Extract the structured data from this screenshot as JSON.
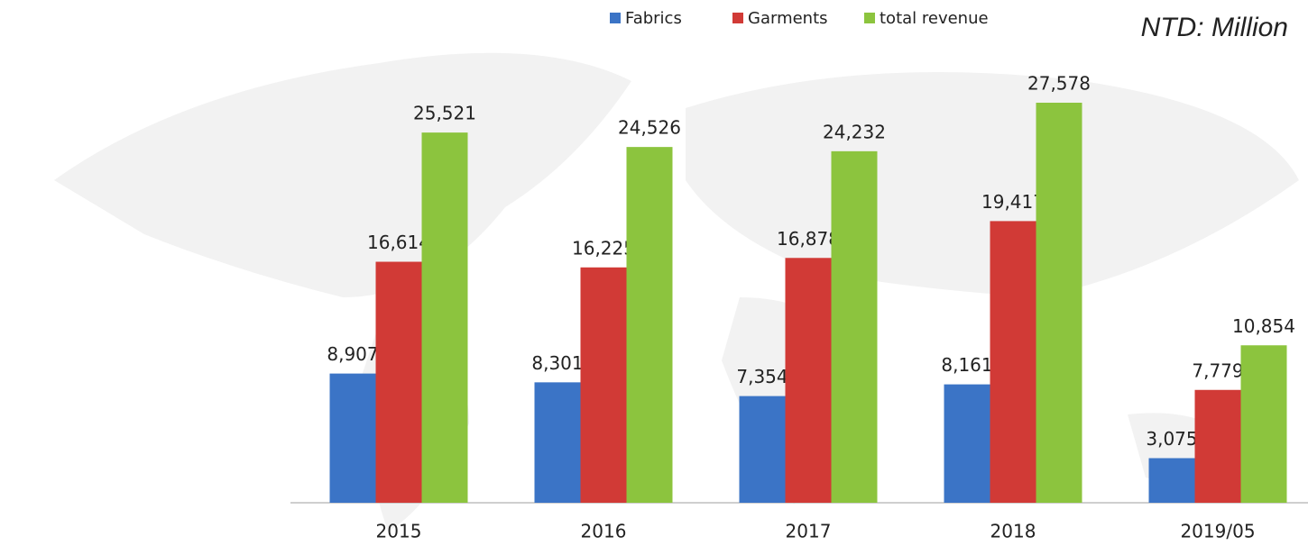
{
  "chart_data": {
    "type": "bar",
    "unit_note": "NTD: Million",
    "categories": [
      "2015",
      "2016",
      "2017",
      "2018",
      "2019/05"
    ],
    "series": [
      {
        "name": "Fabrics",
        "color": "#3b74c6",
        "values": [
          8907,
          8301,
          7354,
          8161,
          3075
        ],
        "value_labels": [
          "8,907",
          "8,301",
          "7,354",
          "8,161",
          "3,075"
        ]
      },
      {
        "name": "Garments",
        "color": "#d13a36",
        "values": [
          16614,
          16225,
          16878,
          19417,
          7779
        ],
        "value_labels": [
          "16,614",
          "16,225",
          "16,878",
          "19,417",
          "7,779"
        ]
      },
      {
        "name": "total revenue",
        "color": "#8cc43e",
        "values": [
          25521,
          24526,
          24232,
          27578,
          10854
        ],
        "value_labels": [
          "25,521",
          "24,526",
          "24,232",
          "27,578",
          "10,854"
        ]
      }
    ]
  }
}
